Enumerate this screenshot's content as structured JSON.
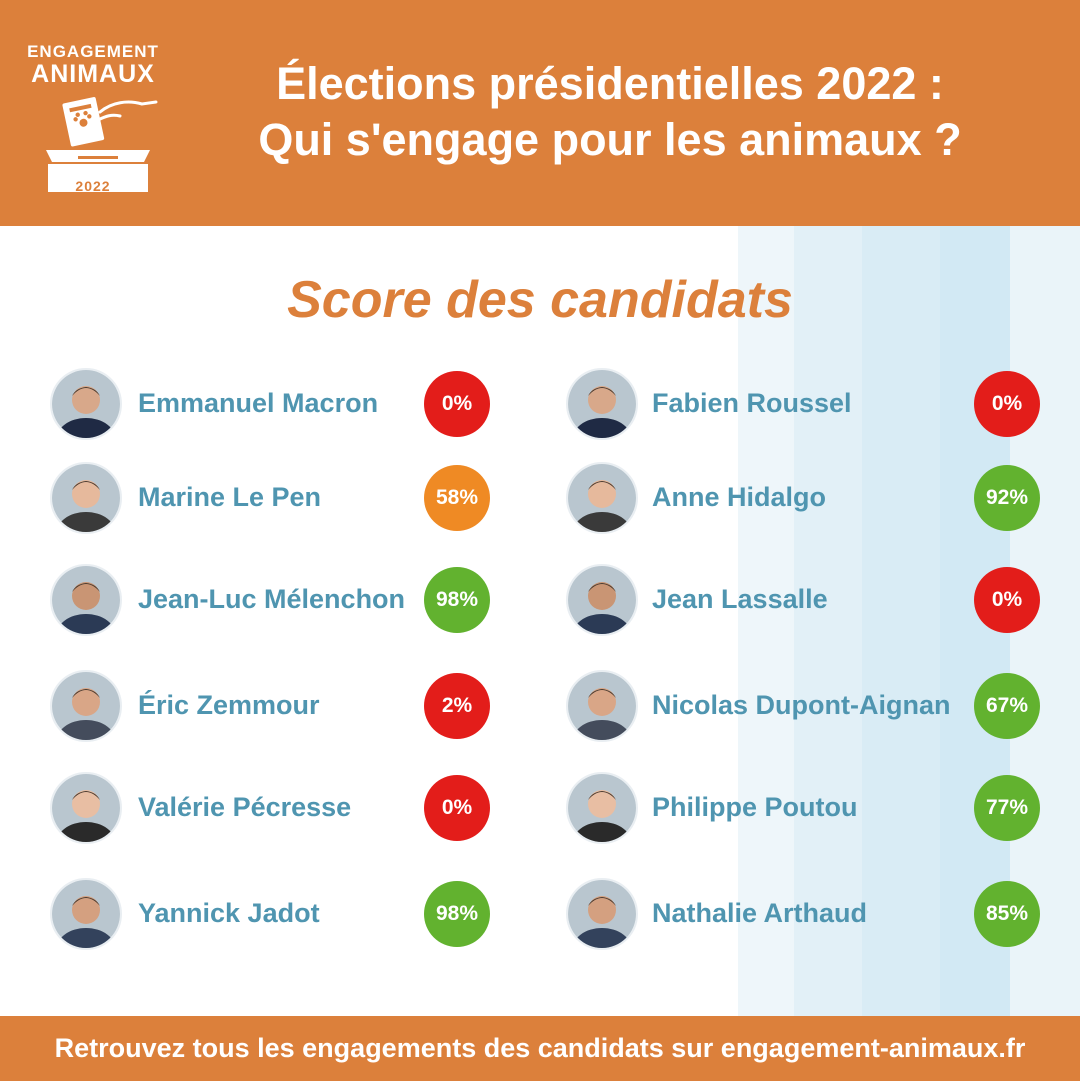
{
  "header": {
    "logo": {
      "line1": "ENGAGEMENT",
      "line2": "ANIMAUX",
      "year": "2022"
    },
    "title_line1": "Élections présidentielles 2022 :",
    "title_line2": "Qui s'engage pour les animaux ?"
  },
  "section_title": "Score des candidats",
  "colors": {
    "brand_orange": "#dc803b",
    "name_blue": "#4f95b0",
    "score_red": "#e31d1a",
    "score_orange": "#ef8a24",
    "score_green": "#62b22f"
  },
  "candidates_left": [
    {
      "name": "Emmanuel Macron",
      "score": "0%",
      "status": "red",
      "avatar_icon": "portrait-icon"
    },
    {
      "name": "Marine Le Pen",
      "score": "58%",
      "status": "orange",
      "avatar_icon": "portrait-icon"
    },
    {
      "name": "Jean-Luc Mélenchon",
      "score": "98%",
      "status": "green",
      "avatar_icon": "portrait-icon"
    },
    {
      "name": "Éric Zemmour",
      "score": "2%",
      "status": "red",
      "avatar_icon": "portrait-icon"
    },
    {
      "name": "Valérie Pécresse",
      "score": "0%",
      "status": "red",
      "avatar_icon": "portrait-icon"
    },
    {
      "name": "Yannick Jadot",
      "score": "98%",
      "status": "green",
      "avatar_icon": "portrait-icon"
    }
  ],
  "candidates_right": [
    {
      "name": "Fabien Roussel",
      "score": "0%",
      "status": "red",
      "avatar_icon": "portrait-icon"
    },
    {
      "name": "Anne Hidalgo",
      "score": "92%",
      "status": "green",
      "avatar_icon": "portrait-icon"
    },
    {
      "name": "Jean Lassalle",
      "score": "0%",
      "status": "red",
      "avatar_icon": "portrait-icon"
    },
    {
      "name": "Nicolas Dupont-Aignan",
      "score": "67%",
      "status": "green",
      "avatar_icon": "portrait-icon"
    },
    {
      "name": "Philippe Poutou",
      "score": "77%",
      "status": "green",
      "avatar_icon": "portrait-icon"
    },
    {
      "name": "Nathalie Arthaud",
      "score": "85%",
      "status": "green",
      "avatar_icon": "portrait-icon"
    }
  ],
  "footer": {
    "text": "Retrouvez tous les engagements des candidats sur engagement-animaux.fr"
  }
}
